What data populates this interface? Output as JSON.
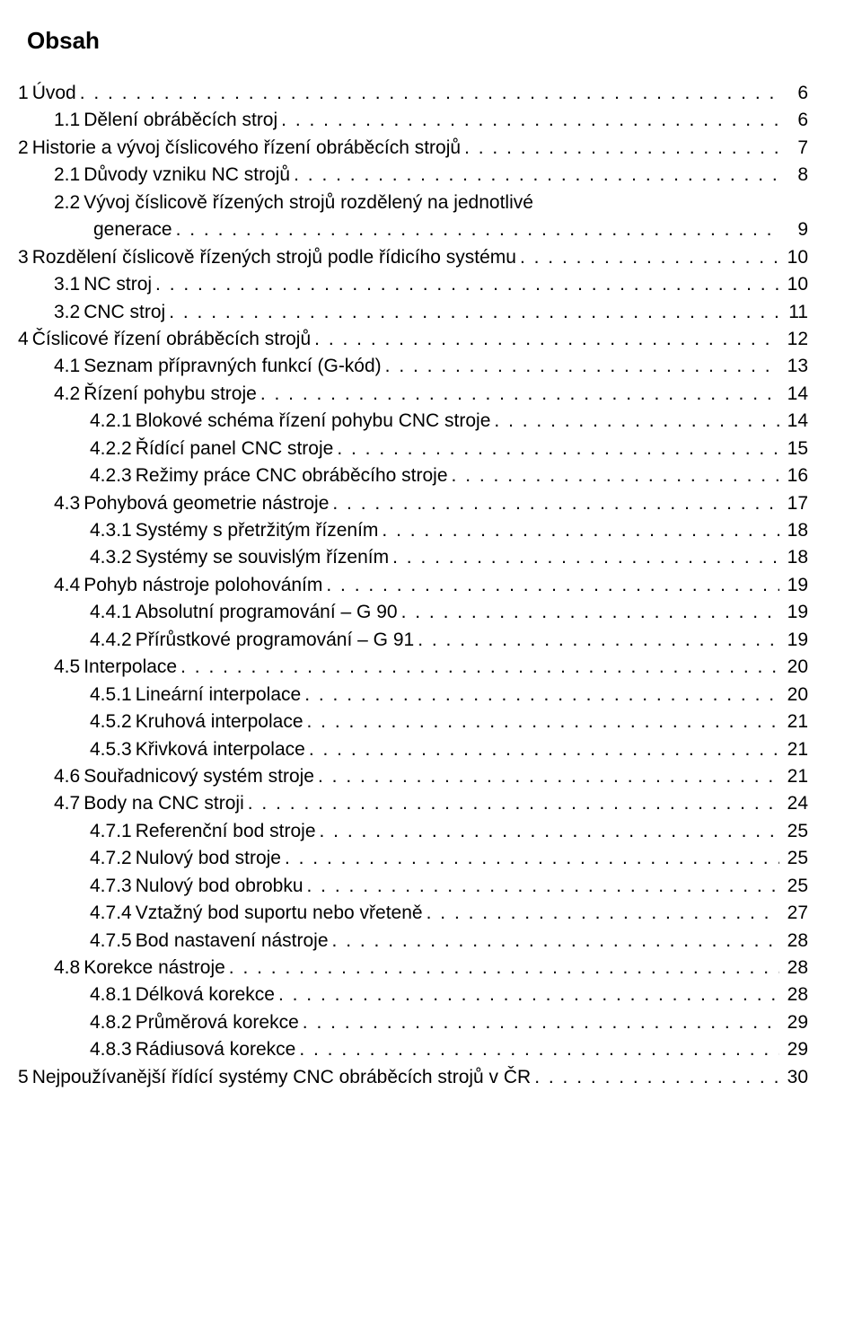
{
  "document": {
    "title": "Obsah",
    "font_family": "Arial",
    "title_fontsize": 26,
    "body_fontsize": 21,
    "text_color": "#000000",
    "background_color": "#ffffff",
    "entries": [
      {
        "level": 0,
        "num": "1",
        "text": "Úvod",
        "page": "6"
      },
      {
        "level": 1,
        "num": "1.1",
        "text": "Dělení obráběcích stroj",
        "page": "6"
      },
      {
        "level": 0,
        "num": "2",
        "text": "Historie a vývoj číslicového řízení obráběcích strojů",
        "page": "7"
      },
      {
        "level": 1,
        "num": "2.1",
        "text": "Důvody vzniku NC strojů",
        "page": "8"
      },
      {
        "level": 1,
        "num": "2.2",
        "text": "Vývoj číslicově řízených strojů rozdělený na jednotlivé",
        "page": "",
        "nowrap_leader": true
      },
      {
        "level": "wrap",
        "num": "",
        "text": "generace",
        "page": "9"
      },
      {
        "level": 0,
        "num": "3",
        "text": "Rozdělení číslicově řízených strojů podle řídicího systému",
        "page": "10"
      },
      {
        "level": 1,
        "num": "3.1",
        "text": "NC stroj",
        "page": "10"
      },
      {
        "level": 1,
        "num": "3.2",
        "text": "CNC stroj",
        "page": "11"
      },
      {
        "level": 0,
        "num": "4",
        "text": "Číslicové řízení obráběcích strojů",
        "page": "12"
      },
      {
        "level": 1,
        "num": "4.1",
        "text": "Seznam přípravných funkcí (G-kód)",
        "page": "13"
      },
      {
        "level": 1,
        "num": "4.2",
        "text": "Řízení pohybu stroje",
        "page": "14"
      },
      {
        "level": 2,
        "num": "4.2.1",
        "text": "Blokové schéma řízení pohybu CNC stroje",
        "page": "14"
      },
      {
        "level": 2,
        "num": "4.2.2",
        "text": "Řídící panel CNC stroje",
        "page": "15"
      },
      {
        "level": 2,
        "num": "4.2.3",
        "text": "Režimy práce CNC obráběcího stroje",
        "page": "16"
      },
      {
        "level": 1,
        "num": "4.3",
        "text": "Pohybová geometrie nástroje",
        "page": "17"
      },
      {
        "level": 2,
        "num": "4.3.1",
        "text": "Systémy s přetržitým řízením",
        "page": "18"
      },
      {
        "level": 2,
        "num": "4.3.2",
        "text": "Systémy se souvislým řízením",
        "page": "18"
      },
      {
        "level": 1,
        "num": "4.4",
        "text": "Pohyb nástroje polohováním",
        "page": "19"
      },
      {
        "level": 2,
        "num": "4.4.1",
        "text": "Absolutní programování – G 90",
        "page": "19"
      },
      {
        "level": 2,
        "num": "4.4.2",
        "text": "Přírůstkové programování – G 91",
        "page": "19"
      },
      {
        "level": 1,
        "num": "4.5",
        "text": "Interpolace",
        "page": "20"
      },
      {
        "level": 2,
        "num": "4.5.1",
        "text": "Lineární interpolace",
        "page": "20"
      },
      {
        "level": 2,
        "num": "4.5.2",
        "text": "Kruhová interpolace",
        "page": "21"
      },
      {
        "level": 2,
        "num": "4.5.3",
        "text": "Křivková interpolace",
        "page": "21"
      },
      {
        "level": 1,
        "num": "4.6",
        "text": "Souřadnicový systém stroje",
        "page": "21"
      },
      {
        "level": 1,
        "num": "4.7",
        "text": "Body na CNC stroji",
        "page": "24"
      },
      {
        "level": 2,
        "num": "4.7.1",
        "text": "Referenční bod stroje",
        "page": "25"
      },
      {
        "level": 2,
        "num": "4.7.2",
        "text": "Nulový bod stroje",
        "page": "25"
      },
      {
        "level": 2,
        "num": "4.7.3",
        "text": "Nulový bod obrobku",
        "page": "25"
      },
      {
        "level": 2,
        "num": "4.7.4",
        "text": "Vztažný bod suportu nebo vřeteně",
        "page": "27"
      },
      {
        "level": 2,
        "num": "4.7.5",
        "text": "Bod nastavení nástroje",
        "page": "28"
      },
      {
        "level": 1,
        "num": "4.8",
        "text": "Korekce nástroje",
        "page": "28"
      },
      {
        "level": 2,
        "num": "4.8.1",
        "text": "Délková korekce",
        "page": "28"
      },
      {
        "level": 2,
        "num": "4.8.2",
        "text": "Průměrová korekce",
        "page": "29"
      },
      {
        "level": 2,
        "num": "4.8.3",
        "text": "Rádiusová korekce",
        "page": "29"
      },
      {
        "level": 0,
        "num": "5",
        "text": "Nejpoužívanější řídící systémy CNC obráběcích strojů v ČR",
        "page": "30"
      }
    ]
  }
}
